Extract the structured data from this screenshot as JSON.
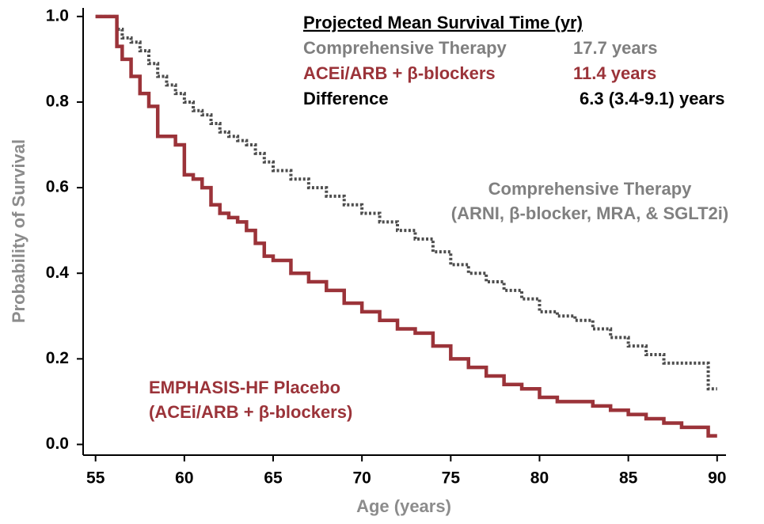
{
  "chart_data": {
    "type": "step",
    "x_label": "Age (years)",
    "y_label": "Probability of Survival",
    "xlim": [
      54.3,
      90.5
    ],
    "ylim": [
      -0.025,
      1.02
    ],
    "xticks": [
      55,
      60,
      65,
      70,
      75,
      80,
      85,
      90
    ],
    "yticks": [
      {
        "value": 0,
        "label": "0.0"
      },
      {
        "value": 0.2,
        "label": "0.2"
      },
      {
        "value": 0.4,
        "label": "0.4"
      },
      {
        "value": 0.6,
        "label": "0.6"
      },
      {
        "value": 0.8,
        "label": "0.8"
      },
      {
        "value": 1,
        "label": "1.0"
      }
    ],
    "x": [
      55,
      56,
      56.2,
      56.5,
      57,
      57.5,
      58,
      58.5,
      59,
      59.5,
      60,
      60.5,
      61,
      61.5,
      62,
      62.5,
      63,
      63.5,
      64,
      64.5,
      65,
      66,
      67,
      68,
      69,
      70,
      71,
      72,
      73,
      74,
      75,
      76,
      77,
      78,
      79,
      80,
      81,
      82,
      83,
      84,
      85,
      86,
      87,
      88,
      89,
      89.5,
      90
    ],
    "series": [
      {
        "name": "Comprehensive Therapy",
        "subtitle": "(ARNI, β-blocker, MRA, & SGLT2i)",
        "color": "#4d4d4d",
        "label_color": "#808080",
        "line_style": "dotted",
        "values": [
          1.0,
          1.0,
          0.97,
          0.95,
          0.94,
          0.92,
          0.89,
          0.86,
          0.84,
          0.82,
          0.8,
          0.78,
          0.77,
          0.75,
          0.73,
          0.72,
          0.71,
          0.7,
          0.68,
          0.66,
          0.64,
          0.62,
          0.6,
          0.58,
          0.56,
          0.54,
          0.52,
          0.5,
          0.48,
          0.45,
          0.42,
          0.4,
          0.38,
          0.36,
          0.34,
          0.31,
          0.3,
          0.29,
          0.27,
          0.25,
          0.23,
          0.21,
          0.19,
          0.19,
          0.19,
          0.13,
          0.13
        ]
      },
      {
        "name": "EMPHASIS-HF Placebo",
        "subtitle": "(ACEi/ARB + β-blockers)",
        "color": "#9b3339",
        "label_color": "#9b3339",
        "line_style": "solid",
        "values": [
          1.0,
          1.0,
          0.93,
          0.9,
          0.86,
          0.82,
          0.79,
          0.72,
          0.72,
          0.7,
          0.63,
          0.62,
          0.6,
          0.56,
          0.54,
          0.53,
          0.52,
          0.5,
          0.47,
          0.44,
          0.43,
          0.4,
          0.38,
          0.36,
          0.33,
          0.31,
          0.29,
          0.27,
          0.26,
          0.23,
          0.2,
          0.18,
          0.16,
          0.14,
          0.13,
          0.11,
          0.1,
          0.1,
          0.09,
          0.08,
          0.07,
          0.06,
          0.05,
          0.04,
          0.04,
          0.02,
          0.02
        ]
      }
    ],
    "summary": {
      "title": "Projected Mean Survival Time (yr)",
      "rows": [
        {
          "label": "Comprehensive Therapy",
          "value": "17.7 years",
          "color": "#7f7f7f"
        },
        {
          "label": "ACEi/ARB + β-blockers",
          "value": "11.4 years",
          "color": "#9b3339"
        },
        {
          "label": "Difference",
          "value": "6.3 (3.4-9.1) years",
          "color": "#000000"
        }
      ]
    }
  }
}
